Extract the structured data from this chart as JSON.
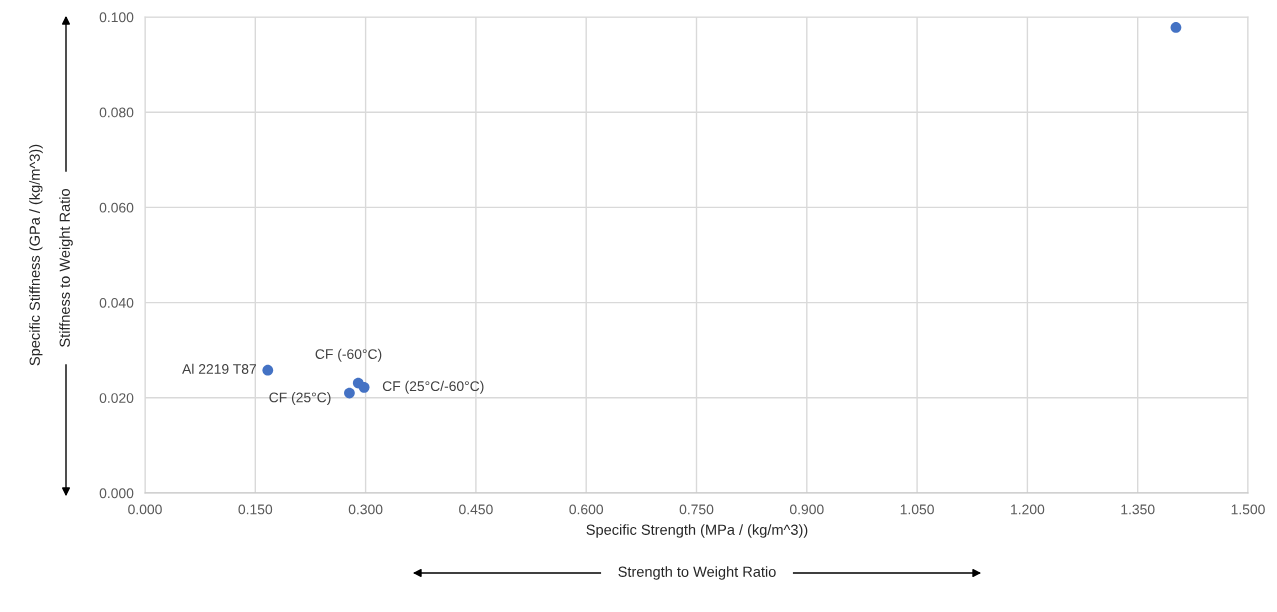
{
  "chart_data": {
    "type": "scatter",
    "xlabel": "Specific Strength (MPa / (kg/m^3))",
    "ylabel": "Specific Stiffness (GPa / (kg/m^3))",
    "x": [
      1.402,
      0.167,
      0.29,
      0.298,
      0.278
    ],
    "series": [
      {
        "color": "#4472c4",
        "values": [
          0.0978,
          0.0258,
          0.0231,
          0.0222,
          0.021
        ]
      }
    ],
    "marker": "circle",
    "grid": true,
    "xlim": [
      0,
      1.5
    ],
    "ylim": [
      0,
      0.1
    ],
    "xticks": [
      {
        "value": 0,
        "label": "0.000"
      },
      {
        "value": 0.15,
        "label": "0.150"
      },
      {
        "value": 0.3,
        "label": "0.300"
      },
      {
        "value": 0.45,
        "label": "0.450"
      },
      {
        "value": 0.6,
        "label": "0.600"
      },
      {
        "value": 0.75,
        "label": "0.750"
      },
      {
        "value": 0.9,
        "label": "0.900"
      },
      {
        "value": 1.05,
        "label": "1.050"
      },
      {
        "value": 1.2,
        "label": "1.200"
      },
      {
        "value": 1.35,
        "label": "1.350"
      },
      {
        "value": 1.5,
        "label": "1.500"
      }
    ],
    "yticks": [
      {
        "value": 0,
        "label": "0.000"
      },
      {
        "value": 0.02,
        "label": "0.020"
      },
      {
        "value": 0.04,
        "label": "0.040"
      },
      {
        "value": 0.06,
        "label": "0.060"
      },
      {
        "value": 0.08,
        "label": "0.080"
      },
      {
        "value": 0.1,
        "label": "0.100"
      }
    ],
    "annotations": [
      "Stiffness to Weight Ratio",
      "Strength to Weight Ratio",
      {
        "text": "Al 2219 T87",
        "x": 0.167,
        "y": 0.0258
      },
      {
        "text": "CF (-60°C)",
        "x": 0.29,
        "y": 0.0231
      },
      {
        "text": "CF (25°C/-60°C)",
        "x": 0.298,
        "y": 0.0222
      },
      {
        "text": "CF (25°C)",
        "x": 0.278,
        "y": 0.021
      }
    ]
  }
}
